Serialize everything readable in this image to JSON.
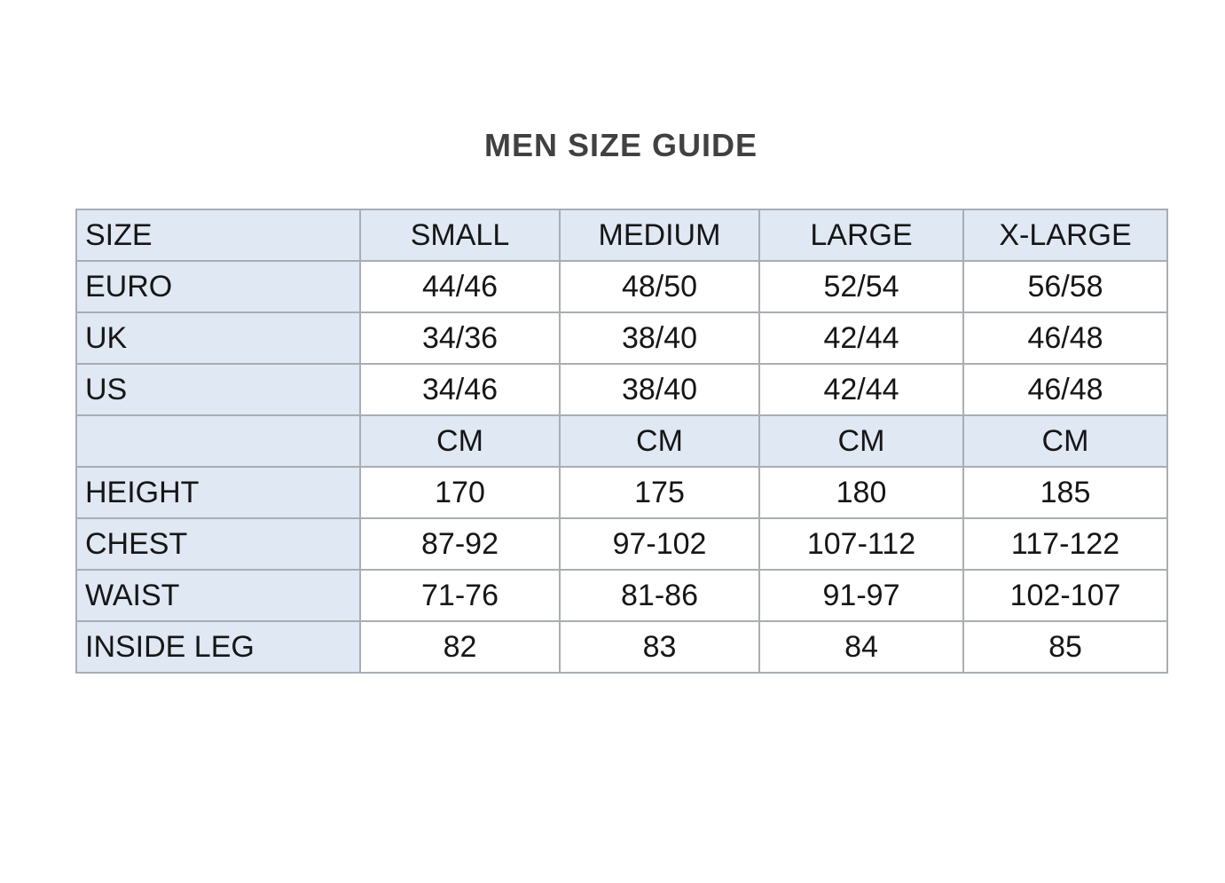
{
  "title": "MEN SIZE GUIDE",
  "table": {
    "columns": [
      "SIZE",
      "SMALL",
      "MEDIUM",
      "LARGE",
      "X-LARGE"
    ],
    "unit_row": {
      "label": "",
      "values": [
        "CM",
        "CM",
        "CM",
        "CM"
      ]
    },
    "rows": [
      {
        "label": "EURO",
        "values": [
          "44/46",
          "48/50",
          "52/54",
          "56/58"
        ]
      },
      {
        "label": "UK",
        "values": [
          "34/36",
          "38/40",
          "42/44",
          "46/48"
        ]
      },
      {
        "label": "US",
        "values": [
          "34/46",
          "38/40",
          "42/44",
          "46/48"
        ]
      },
      {
        "label": "HEIGHT",
        "values": [
          "170",
          "175",
          "180",
          "185"
        ]
      },
      {
        "label": "CHEST",
        "values": [
          "87-92",
          "97-102",
          "107-112",
          "117-122"
        ]
      },
      {
        "label": "WAIST",
        "values": [
          "71-76",
          "81-86",
          "91-97",
          "102-107"
        ]
      },
      {
        "label": "INSIDE LEG",
        "values": [
          "82",
          "83",
          "84",
          "85"
        ]
      }
    ],
    "colors": {
      "header_bg": "#dfe8f3",
      "cell_bg": "#ffffff",
      "border": "#a9adb3",
      "text": "#161616",
      "title_text": "#414141"
    }
  }
}
